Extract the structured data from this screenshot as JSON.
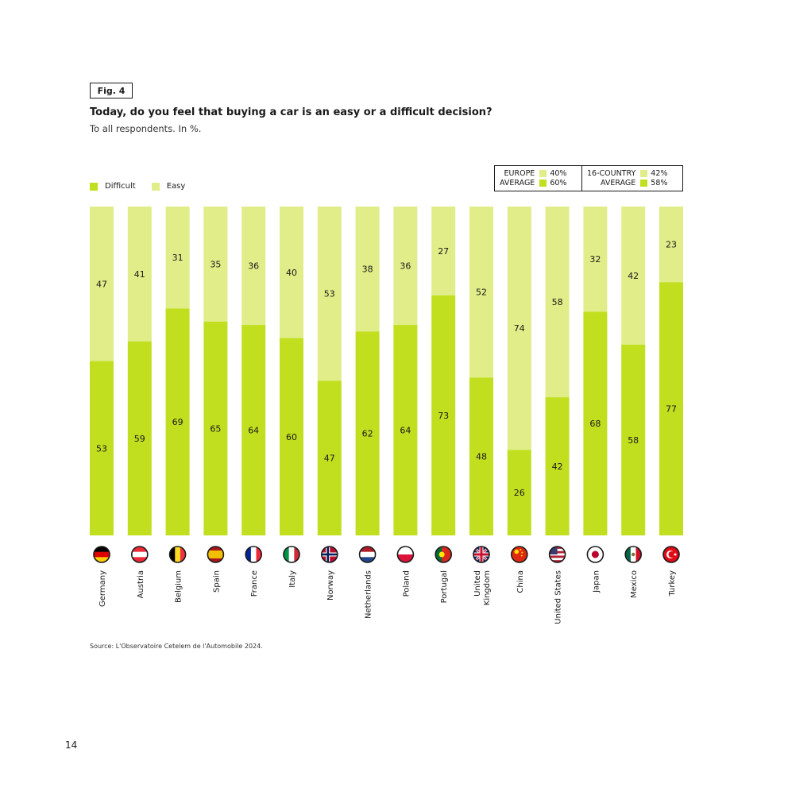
{
  "figure": {
    "label": "Fig. 4",
    "title": "Today, do you feel that buying a car is an easy or a difficult decision?",
    "subtitle": "To all respondents. In %."
  },
  "legend": {
    "difficult": "Difficult",
    "easy": "Easy"
  },
  "averages": {
    "europe": {
      "label_line1": "EUROPE",
      "label_line2": "AVERAGE",
      "easy": "40%",
      "difficult": "60%"
    },
    "all": {
      "label_line1": "16-COUNTRY",
      "label_line2": "AVERAGE",
      "easy": "42%",
      "difficult": "58%"
    }
  },
  "colors": {
    "difficult": "#c1df1f",
    "easy": "#e0ed88"
  },
  "chart_data": {
    "type": "bar",
    "stacked": true,
    "categories": [
      "Germany",
      "Austria",
      "Belgium",
      "Spain",
      "France",
      "Italy",
      "Norway",
      "Netherlands",
      "Poland",
      "Portugal",
      "United Kingdom",
      "China",
      "United States",
      "Japan",
      "Mexico",
      "Turkey"
    ],
    "series": [
      {
        "name": "Difficult",
        "values": [
          53,
          59,
          69,
          65,
          64,
          60,
          47,
          62,
          64,
          73,
          48,
          26,
          42,
          68,
          58,
          77
        ]
      },
      {
        "name": "Easy",
        "values": [
          47,
          41,
          31,
          35,
          36,
          40,
          53,
          38,
          36,
          27,
          52,
          74,
          58,
          32,
          42,
          23
        ]
      }
    ],
    "ylim": [
      0,
      100
    ]
  },
  "flag_icons": [
    "germany-flag-icon",
    "austria-flag-icon",
    "belgium-flag-icon",
    "spain-flag-icon",
    "france-flag-icon",
    "italy-flag-icon",
    "norway-flag-icon",
    "netherlands-flag-icon",
    "poland-flag-icon",
    "portugal-flag-icon",
    "united-kingdom-flag-icon",
    "china-flag-icon",
    "united-states-flag-icon",
    "japan-flag-icon",
    "mexico-flag-icon",
    "turkey-flag-icon"
  ],
  "source": "Source: L'Observatoire Cetelem de l'Automobile 2024.",
  "page_number": "14"
}
